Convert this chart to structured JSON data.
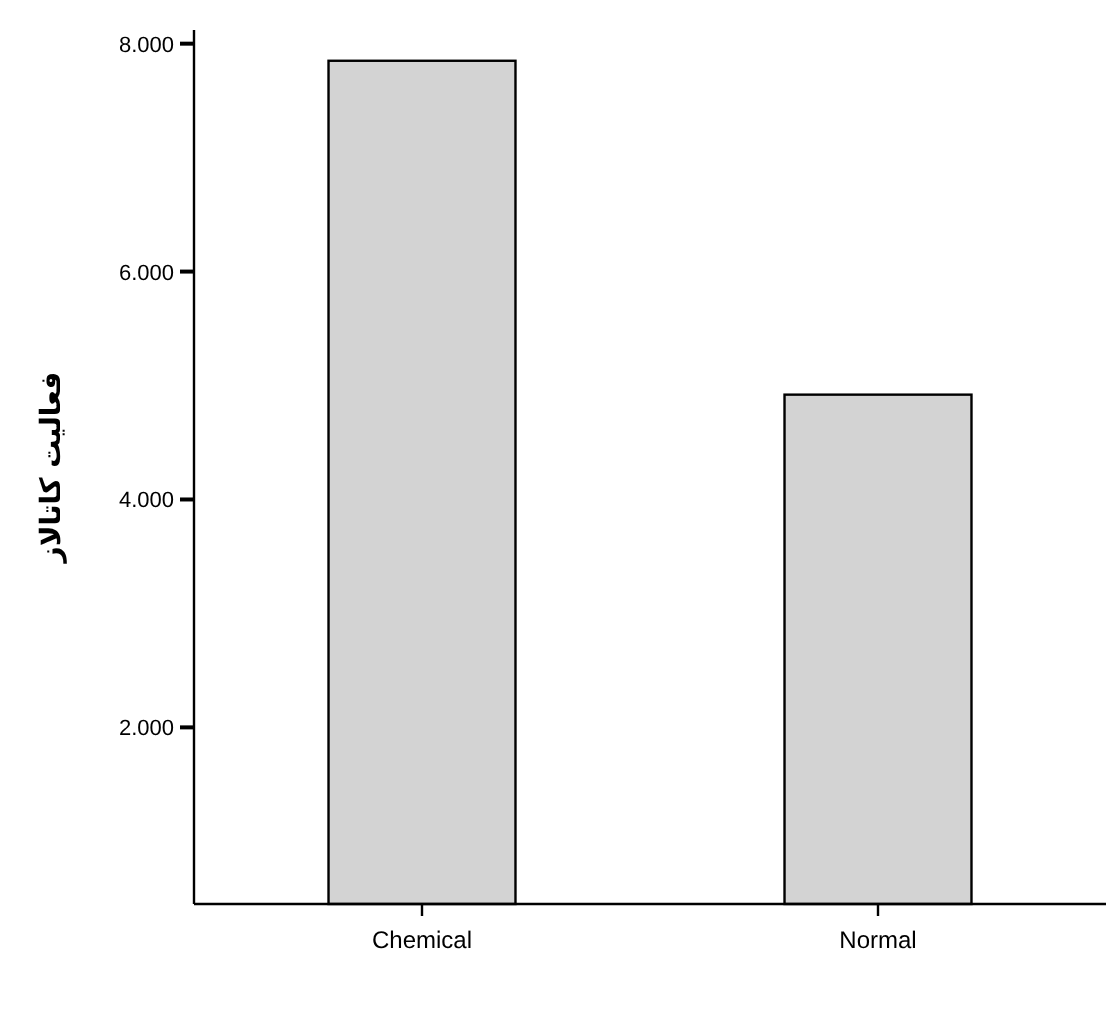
{
  "chart_data": {
    "type": "bar",
    "ylabel": "فعالیت کاتالاز",
    "categories": [
      "Chemical",
      "Normal"
    ],
    "values": [
      7.85,
      4.92
    ],
    "color": "#d3d3d3",
    "ylim": [
      0.45,
      8.12
    ],
    "yticks": [
      {
        "value": 2,
        "label": "2.000"
      },
      {
        "value": 4,
        "label": "4.000"
      },
      {
        "value": 6,
        "label": "6.000"
      },
      {
        "value": 8,
        "label": "8.000"
      }
    ],
    "grid": false
  }
}
